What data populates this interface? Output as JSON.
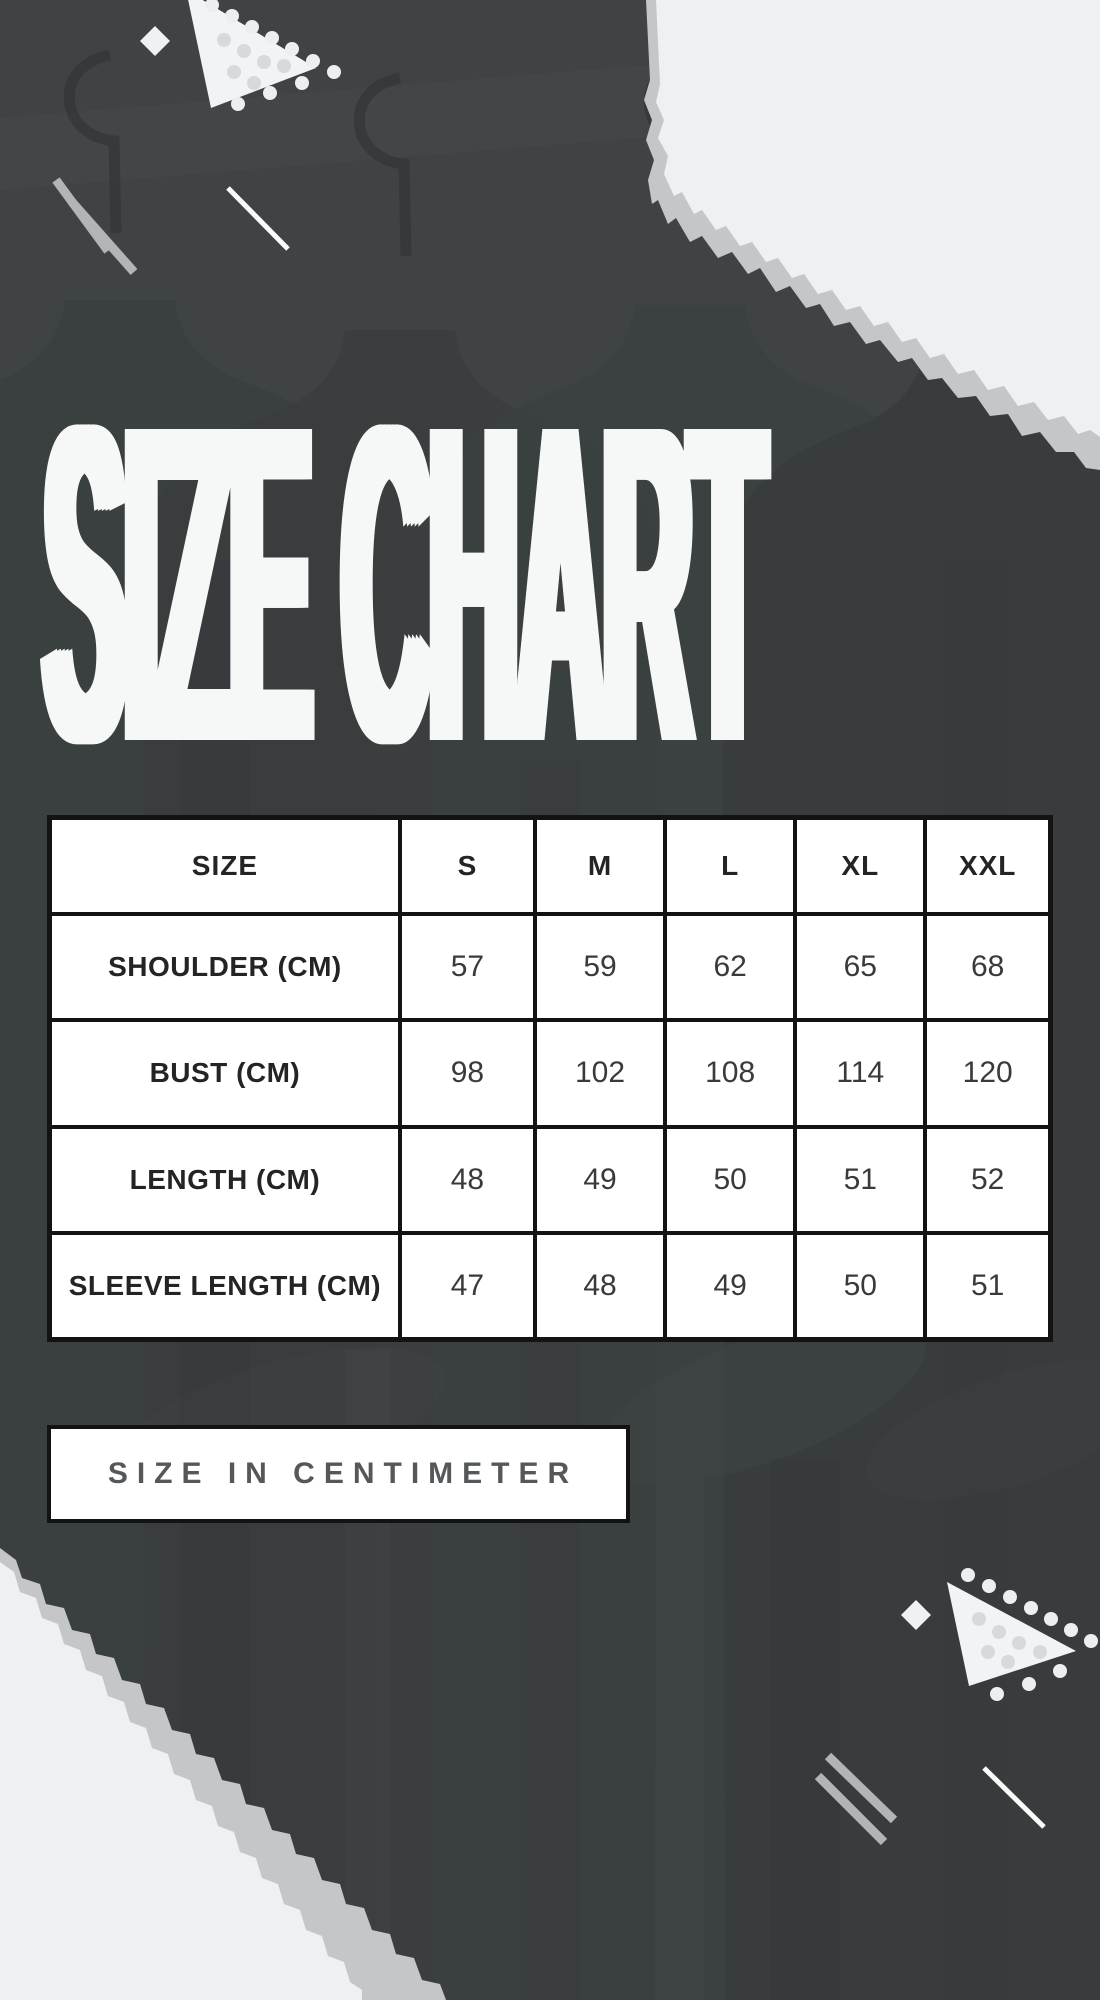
{
  "title": "SIZE CHART",
  "table": {
    "headers": [
      "SIZE",
      "S",
      "M",
      "L",
      "XL",
      "XXL"
    ],
    "rows": [
      {
        "label": "SHOULDER (CM)",
        "values": [
          "57",
          "59",
          "62",
          "65",
          "68"
        ]
      },
      {
        "label": "BUST (CM)",
        "values": [
          "98",
          "102",
          "108",
          "114",
          "120"
        ]
      },
      {
        "label": "LENGTH (CM)",
        "values": [
          "48",
          "49",
          "50",
          "51",
          "52"
        ]
      },
      {
        "label": "SLEEVE LENGTH (CM)",
        "values": [
          "47",
          "48",
          "49",
          "50",
          "51"
        ]
      }
    ]
  },
  "footer": {
    "unit_label": "SIZE IN CENTIMETER"
  },
  "colors": {
    "background": "#3F4344",
    "paper": "#EFF0F1",
    "torn_edge": "#C4C6C7",
    "table_border": "#131313",
    "title_text": "#F6F7F7",
    "header_text": "#242424",
    "cell_text": "#3A3A3A",
    "button_text": "#54585A"
  },
  "chart_data": {
    "type": "table",
    "title": "SIZE CHART",
    "columns": [
      "SIZE",
      "S",
      "M",
      "L",
      "XL",
      "XXL"
    ],
    "series": [
      {
        "name": "SHOULDER (CM)",
        "values": [
          57,
          59,
          62,
          65,
          68
        ]
      },
      {
        "name": "BUST (CM)",
        "values": [
          98,
          102,
          108,
          114,
          120
        ]
      },
      {
        "name": "LENGTH (CM)",
        "values": [
          48,
          49,
          50,
          51,
          52
        ]
      },
      {
        "name": "SLEEVE LENGTH (CM)",
        "values": [
          47,
          48,
          49,
          50,
          51
        ]
      }
    ],
    "note": "SIZE IN CENTIMETER"
  }
}
